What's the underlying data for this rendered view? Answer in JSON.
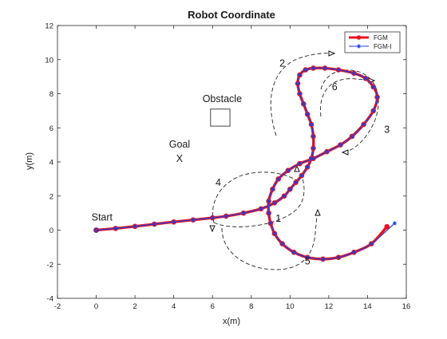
{
  "chart_data": {
    "type": "line",
    "title": "Robot Coordinate",
    "xlabel": "x(m)",
    "ylabel": "y(m)",
    "xlim": [
      -2,
      16
    ],
    "ylim": [
      -4,
      12
    ],
    "xticks": [
      "-2",
      "0",
      "2",
      "4",
      "6",
      "8",
      "10",
      "12",
      "14",
      "16"
    ],
    "yticks": [
      "-4",
      "-2",
      "0",
      "2",
      "4",
      "6",
      "8",
      "10",
      "12"
    ],
    "grid": false,
    "legend_position": "top-right",
    "series": [
      {
        "name": "FGM",
        "color": "#e8141e",
        "marker": "filled-circle",
        "x": [
          0,
          1,
          2,
          3,
          4,
          5,
          6,
          6.7,
          7.6,
          8.5,
          9.2,
          9.7,
          10,
          10.3,
          10.6,
          10.9,
          11.1,
          11.2,
          11.2,
          11.1,
          10.9,
          10.7,
          10.5,
          10.4,
          10.5,
          10.8,
          11.2,
          11.8,
          12.5,
          13.3,
          13.9,
          14.3,
          14.5,
          14.3,
          13.8,
          13.2,
          12.6,
          11.9,
          11.2,
          10.5,
          9.9,
          9.4,
          9.1,
          8.9,
          8.9,
          9,
          9.2,
          9.6,
          10.2,
          10.9,
          11.7,
          12.5,
          13.3,
          14.2,
          15
        ],
        "y": [
          0,
          0.1,
          0.22,
          0.35,
          0.48,
          0.6,
          0.72,
          0.82,
          1.0,
          1.25,
          1.6,
          2.0,
          2.4,
          2.8,
          3.2,
          3.7,
          4.2,
          4.8,
          5.5,
          6.2,
          6.8,
          7.4,
          8.0,
          8.6,
          9.1,
          9.4,
          9.5,
          9.5,
          9.4,
          9.2,
          8.9,
          8.4,
          7.8,
          7.0,
          6.2,
          5.5,
          5.0,
          4.6,
          4.2,
          3.9,
          3.5,
          3.0,
          2.4,
          1.7,
          1.0,
          0.4,
          -0.2,
          -0.8,
          -1.3,
          -1.6,
          -1.7,
          -1.6,
          -1.3,
          -0.8,
          0.2
        ]
      },
      {
        "name": "FGM-I",
        "color": "#1f3fe0",
        "marker": "asterisk",
        "x": [
          0,
          1,
          2,
          3,
          4,
          5,
          6,
          6.7,
          7.6,
          8.5,
          9.2,
          9.7,
          10,
          10.3,
          10.6,
          10.9,
          11.1,
          11.2,
          11.2,
          11.1,
          10.9,
          10.7,
          10.5,
          10.4,
          10.5,
          10.8,
          11.2,
          11.8,
          12.5,
          13.3,
          13.9,
          14.3,
          14.5,
          14.3,
          13.8,
          13.2,
          12.6,
          11.9,
          11.2,
          10.5,
          9.9,
          9.4,
          9.1,
          8.9,
          8.9,
          9,
          9.2,
          9.6,
          10.2,
          10.9,
          11.7,
          12.5,
          13.3,
          14.2,
          15.4
        ],
        "y": [
          0,
          0.1,
          0.22,
          0.35,
          0.48,
          0.6,
          0.72,
          0.82,
          1.0,
          1.25,
          1.6,
          2.0,
          2.4,
          2.8,
          3.2,
          3.7,
          4.2,
          4.8,
          5.5,
          6.2,
          6.8,
          7.4,
          8.0,
          8.6,
          9.1,
          9.4,
          9.5,
          9.5,
          9.4,
          9.2,
          8.9,
          8.4,
          7.8,
          7.0,
          6.2,
          5.5,
          5.0,
          4.6,
          4.2,
          3.9,
          3.5,
          3.0,
          2.4,
          1.7,
          1.0,
          0.4,
          -0.2,
          -0.8,
          -1.3,
          -1.6,
          -1.7,
          -1.6,
          -1.3,
          -0.8,
          0.4
        ]
      }
    ],
    "annotations": [
      {
        "label": "Start",
        "x": 0.3,
        "y": 0.55
      },
      {
        "label": "Goal",
        "x": 4.3,
        "y": 4.85
      },
      {
        "label": "X",
        "x": 4.3,
        "y": 4.0
      },
      {
        "label": "Obstacle",
        "x": 6.5,
        "y": 7.5
      },
      {
        "label": "1",
        "x": 9.4,
        "y": 0.5
      },
      {
        "label": "2",
        "x": 9.6,
        "y": 9.6
      },
      {
        "label": "3",
        "x": 15.0,
        "y": 5.7
      },
      {
        "label": "4",
        "x": 6.3,
        "y": 2.6
      },
      {
        "label": "5",
        "x": 10.9,
        "y": -2.0
      },
      {
        "label": "6",
        "x": 12.3,
        "y": 8.2
      }
    ],
    "obstacle": {
      "x": [
        5.9,
        6.9
      ],
      "y": [
        6.1,
        7.1
      ]
    }
  }
}
